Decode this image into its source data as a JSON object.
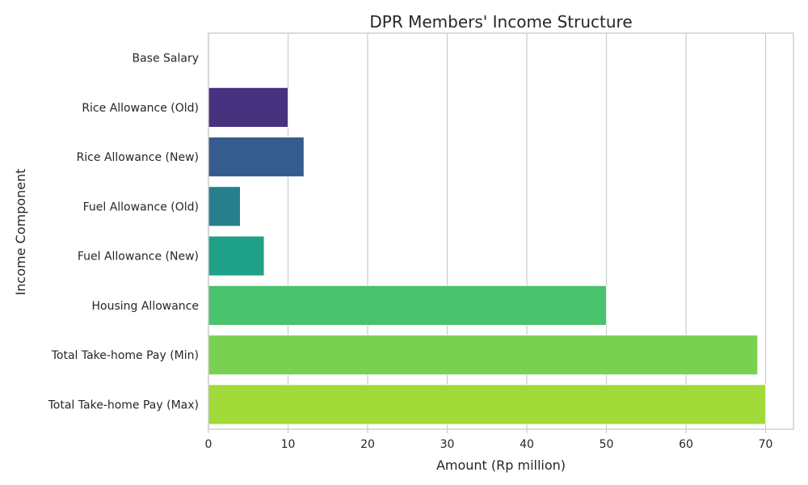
{
  "chart_data": {
    "type": "bar",
    "orientation": "horizontal",
    "title": "DPR Members' Income Structure",
    "xlabel": "Amount (Rp million)",
    "ylabel": "Income Component",
    "xlim": [
      0,
      73.5
    ],
    "xticks": [
      0,
      10,
      20,
      30,
      40,
      50,
      60,
      70
    ],
    "grid": "vertical",
    "categories": [
      "Base Salary",
      "Rice Allowance (Old)",
      "Rice Allowance (New)",
      "Fuel Allowance (Old)",
      "Fuel Allowance (New)",
      "Housing Allowance",
      "Total Take-home Pay (Min)",
      "Total Take-home Pay (Max)"
    ],
    "values": [
      0,
      10,
      12,
      4,
      7,
      50,
      69,
      70
    ],
    "colors": [
      "#46327e",
      "#46327e",
      "#365c8d",
      "#277f8e",
      "#1fa187",
      "#4ac16d",
      "#7ad151",
      "#a0da39"
    ]
  }
}
